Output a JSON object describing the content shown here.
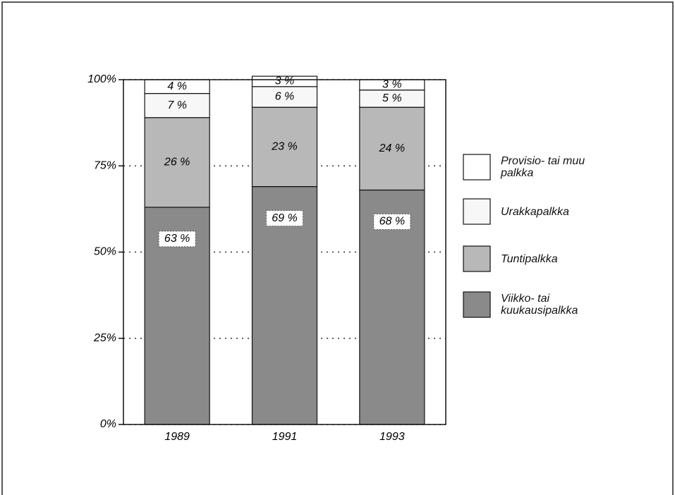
{
  "chart_data": {
    "type": "stacked_bar",
    "categories": [
      "1989",
      "1991",
      "1993"
    ],
    "series": [
      {
        "name": "Viikko- tai kuukausipalkka",
        "color": "#8a8a8a",
        "values": [
          63,
          69,
          68
        ],
        "value_labels": [
          "63 %",
          "69 %",
          "68 %"
        ]
      },
      {
        "name": "Tuntipalkka",
        "color": "#b8b8b8",
        "values": [
          26,
          23,
          24
        ],
        "value_labels": [
          "26 %",
          "23 %",
          "24 %"
        ]
      },
      {
        "name": "Urakkapalkka",
        "color": "#f7f7f7",
        "values": [
          7,
          6,
          5
        ],
        "value_labels": [
          "7 %",
          "6 %",
          "5 %"
        ]
      },
      {
        "name": "Provisio- tai muu palkka",
        "color": "#ffffff",
        "values": [
          4,
          3,
          3
        ],
        "value_labels": [
          "4 %",
          "3 %",
          "3 %"
        ]
      }
    ],
    "ylim": [
      0,
      100
    ],
    "yticks": [
      {
        "value": 0,
        "label": "0%"
      },
      {
        "value": 25,
        "label": "25%"
      },
      {
        "value": 50,
        "label": "50%"
      },
      {
        "value": 75,
        "label": "75%"
      },
      {
        "value": 100,
        "label": "100%"
      }
    ],
    "grid": true,
    "legend": "right"
  }
}
